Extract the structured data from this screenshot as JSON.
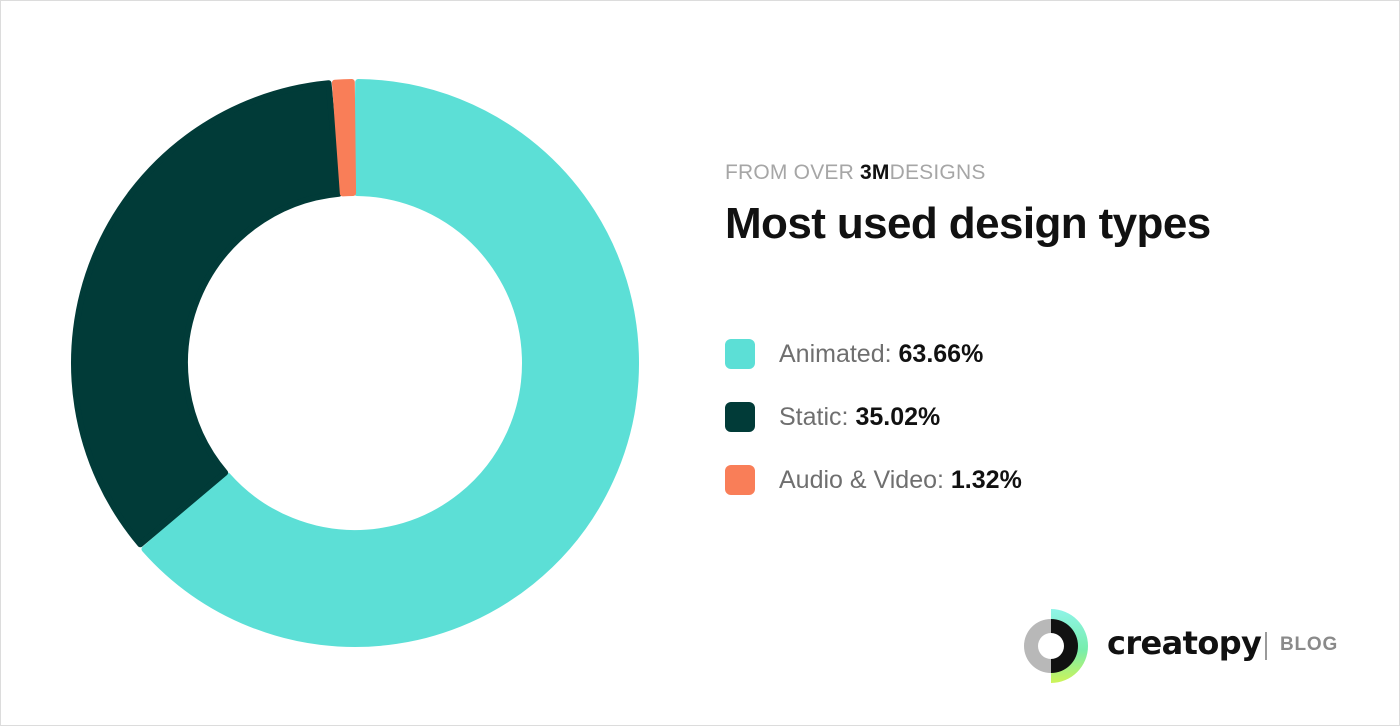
{
  "header": {
    "eyebrow_prefix": "FROM OVER",
    "eyebrow_em": "3M",
    "eyebrow_suffix": "DESIGNS",
    "title": "Most used design types"
  },
  "legend": [
    {
      "label": "Animated:",
      "value": "63.66%",
      "color": "#5CDFD6"
    },
    {
      "label": "Static:",
      "value": "35.02%",
      "color": "#013B38"
    },
    {
      "label": "Audio & Video:",
      "value": "1.32%",
      "color": "#F97E58"
    }
  ],
  "chart_data": {
    "type": "pie",
    "style": "donut",
    "title": "Most used design types",
    "subtitle": "FROM OVER 3M DESIGNS",
    "categories": [
      "Animated",
      "Static",
      "Audio & Video"
    ],
    "values": [
      63.66,
      35.02,
      1.32
    ],
    "unit": "%",
    "colors": [
      "#5CDFD6",
      "#013B38",
      "#F97E58"
    ],
    "legend_position": "right"
  },
  "brand": {
    "name": "creatopy",
    "tag": "BLOG",
    "icon": "creatopy-logo-icon"
  }
}
